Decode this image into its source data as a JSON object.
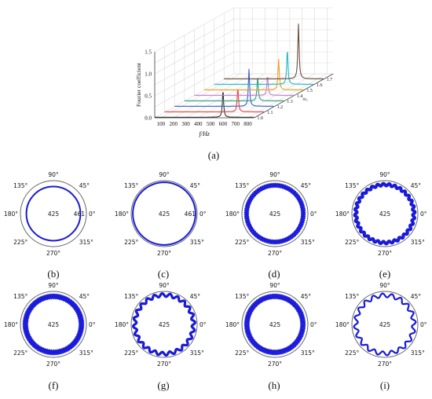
{
  "chart_data": [
    {
      "panel": "(a)",
      "type": "line",
      "ylabel": "Fourier coefficient",
      "xlabel": "f/Hz",
      "zlabel": "ω₀",
      "x_ticks": [
        "100",
        "200",
        "300",
        "400",
        "500",
        "600",
        "700",
        "800"
      ],
      "y_ticks": [
        "0.0",
        "0.5",
        "1.0",
        "1.5"
      ],
      "z_ticks": [
        "1.0",
        "1.1",
        "1.2",
        "1.3",
        "1.4",
        "1.5",
        "1.6",
        "1.7"
      ],
      "ylim": [
        0,
        1.5
      ],
      "xlim": [
        50,
        850
      ],
      "series": [
        {
          "z": 1.0,
          "color": "#333333",
          "peak_x": 600,
          "peak_y": 0.62
        },
        {
          "z": 1.1,
          "color": "#e8433f",
          "peak_x": 640,
          "peak_y": 0.55
        },
        {
          "z": 1.2,
          "color": "#3a5fd0",
          "peak_x": 650,
          "peak_y": 0.85
        },
        {
          "z": 1.3,
          "color": "#2ca07a",
          "peak_x": 640,
          "peak_y": 0.55
        },
        {
          "z": 1.4,
          "color": "#c57bd6",
          "peak_x": 640,
          "peak_y": 0.45
        },
        {
          "z": 1.5,
          "color": "#f0a020",
          "peak_x": 650,
          "peak_y": 0.7
        },
        {
          "z": 1.6,
          "color": "#1fb8c9",
          "peak_x": 640,
          "peak_y": 0.8
        },
        {
          "z": 1.7,
          "color": "#6b4a3a",
          "peak_x": 650,
          "peak_y": 1.25
        }
      ]
    },
    {
      "panel": "(b)",
      "type": "polar",
      "angle_labels": [
        "90°",
        "45°",
        "0°",
        "315°",
        "270°",
        "225°",
        "180°",
        "135°"
      ],
      "center_label": "425",
      "radial_label": "461",
      "waves": 0,
      "amplitude": 0,
      "base_radius": 0.82,
      "thickness": 2
    },
    {
      "panel": "(c)",
      "type": "polar",
      "angle_labels": [
        "90°",
        "45°",
        "0°",
        "315°",
        "270°",
        "225°",
        "180°",
        "135°"
      ],
      "center_label": "425",
      "radial_label": "461",
      "waves": 0,
      "amplitude": 0,
      "base_radius": 0.95,
      "thickness": 2
    },
    {
      "panel": "(d)",
      "type": "polar",
      "angle_labels": [
        "90°",
        "45°",
        "0°",
        "315°",
        "270°",
        "225°",
        "180°",
        "135°"
      ],
      "center_label": "425",
      "radial_label": "",
      "waves": 48,
      "amplitude": 0.06,
      "base_radius": 0.86,
      "thickness": 1.4,
      "band": true
    },
    {
      "panel": "(e)",
      "type": "polar",
      "angle_labels": [
        "90°",
        "45°",
        "0°",
        "315°",
        "270°",
        "225°",
        "180°",
        "135°"
      ],
      "center_label": "425",
      "radial_label": "",
      "waves": 32,
      "amplitude": 0.035,
      "base_radius": 0.88,
      "thickness": 4,
      "band": false
    },
    {
      "panel": "(f)",
      "type": "polar",
      "angle_labels": [
        "90°",
        "45°",
        "0°",
        "315°",
        "270°",
        "225°",
        "180°",
        "135°"
      ],
      "center_label": "425",
      "radial_label": "",
      "waves": 60,
      "amplitude": 0.07,
      "base_radius": 0.85,
      "thickness": 1.3,
      "band": true
    },
    {
      "panel": "(g)",
      "type": "polar",
      "angle_labels": [
        "90°",
        "45°",
        "0°",
        "315°",
        "270°",
        "225°",
        "180°",
        "135°"
      ],
      "center_label": "425",
      "radial_label": "",
      "waves": 24,
      "amplitude": 0.05,
      "base_radius": 0.89,
      "thickness": 3.2,
      "band": false
    },
    {
      "panel": "(h)",
      "type": "polar",
      "angle_labels": [
        "90°",
        "45°",
        "0°",
        "315°",
        "270°",
        "225°",
        "180°",
        "135°"
      ],
      "center_label": "425",
      "radial_label": "",
      "waves": 56,
      "amplitude": 0.07,
      "base_radius": 0.85,
      "thickness": 1.3,
      "band": true
    },
    {
      "panel": "(i)",
      "type": "polar",
      "angle_labels": [
        "90°",
        "45°",
        "0°",
        "315°",
        "270°",
        "225°",
        "180°",
        "135°"
      ],
      "center_label": "425",
      "radial_label": "",
      "waves": 20,
      "amplitude": 0.06,
      "base_radius": 0.88,
      "thickness": 2.2,
      "band": false
    }
  ],
  "colors": {
    "ring": "#1a1ad8",
    "outer_circle": "#666666"
  }
}
